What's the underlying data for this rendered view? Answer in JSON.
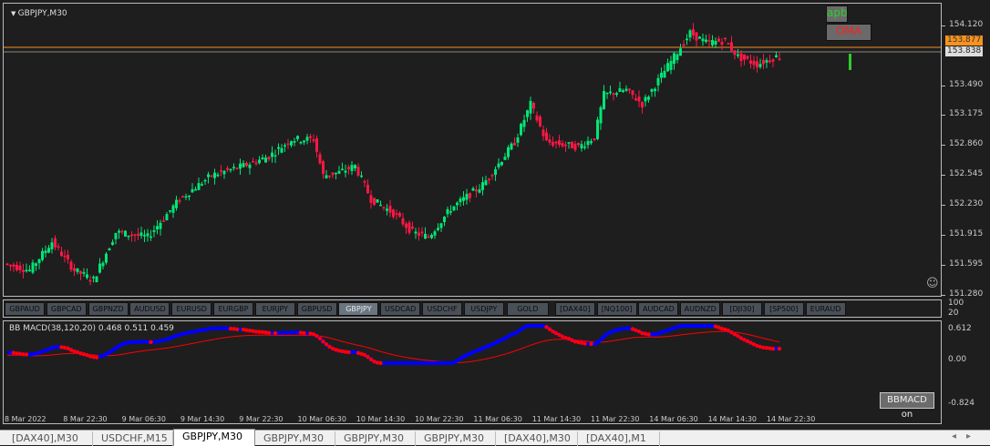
{
  "chart": {
    "title": "GBPJPY,M30",
    "symbol": "GBPJPY",
    "timeframe": "M30",
    "bid_price": "153.838",
    "ask_label": "153.877",
    "price_ticks": [
      "154.120",
      "153.838",
      "153.490",
      "153.175",
      "152.860",
      "152.545",
      "152.230",
      "151.915",
      "151.595",
      "151.280"
    ],
    "bull_color": "#00e676",
    "bear_color": "#ff1744",
    "ask_line_color": "#f7931e",
    "price_waypoints": [
      [
        0,
        151.62
      ],
      [
        8,
        151.55
      ],
      [
        15,
        151.85
      ],
      [
        22,
        151.55
      ],
      [
        28,
        151.45
      ],
      [
        35,
        151.95
      ],
      [
        45,
        151.9
      ],
      [
        55,
        152.3
      ],
      [
        65,
        152.55
      ],
      [
        75,
        152.65
      ],
      [
        83,
        152.75
      ],
      [
        90,
        152.93
      ],
      [
        97,
        152.93
      ],
      [
        100,
        152.55
      ],
      [
        105,
        152.58
      ],
      [
        110,
        152.65
      ],
      [
        115,
        152.3
      ],
      [
        122,
        152.15
      ],
      [
        128,
        151.95
      ],
      [
        133,
        151.9
      ],
      [
        140,
        152.2
      ],
      [
        150,
        152.45
      ],
      [
        160,
        152.9
      ],
      [
        165,
        153.3
      ],
      [
        170,
        152.9
      ],
      [
        180,
        152.85
      ],
      [
        185,
        152.95
      ],
      [
        188,
        153.4
      ],
      [
        195,
        153.45
      ],
      [
        200,
        153.3
      ],
      [
        207,
        153.65
      ],
      [
        215,
        154.05
      ],
      [
        220,
        153.95
      ],
      [
        226,
        153.97
      ],
      [
        230,
        153.8
      ],
      [
        236,
        153.72
      ],
      [
        242,
        153.8
      ]
    ],
    "indicator_labels": {
      "apb": "apb",
      "oma": "OMA"
    },
    "smiley": "☺"
  },
  "symbols": [
    "GBPAUD",
    "GBPCAD",
    "GBPNZD",
    "AUDUSD",
    "EURUSD",
    "EURGBP",
    "EURJPY",
    "GBPUSD",
    "GBPJPY",
    "USDCAD",
    "USDCHF",
    "USDJPY",
    "GOLD",
    "[DAX40]",
    "[NQ100]",
    "AUDCAD",
    "AUDNZD",
    "[DJI30]",
    "[SP500]",
    "EURAUD"
  ],
  "active_symbol": "GBPJPY",
  "button_scale": [
    "100",
    "20"
  ],
  "macd": {
    "label": "BB MACD(38,120,20) 0.468 0.511 0.459",
    "ticks": [
      "0.612",
      "0.00",
      "-0.824"
    ],
    "button": "BBMACD on",
    "main_color": "#0000ff",
    "signal_color": "#ff0000"
  },
  "time_ticks": [
    "8 Mar 2022",
    "8 Mar 22:30",
    "9 Mar 06:30",
    "9 Mar 14:30",
    "9 Mar 22:30",
    "10 Mar 06:30",
    "10 Mar 14:30",
    "10 Mar 22:30",
    "11 Mar 06:30",
    "11 Mar 14:30",
    "11 Mar 22:30",
    "14 Mar 06:30",
    "14 Mar 14:30",
    "14 Mar 22:30"
  ],
  "tabs": [
    "[DAX40],M30",
    "USDCHF,M15",
    "GBPJPY,M30",
    "GBPJPY,M30",
    "GBPJPY,M30",
    "GBPJPY,M30",
    "[DAX40],M30",
    "[DAX40],M1"
  ],
  "active_tab": 2,
  "tab_scroll": {
    "left": "◂",
    "right": "▸"
  }
}
